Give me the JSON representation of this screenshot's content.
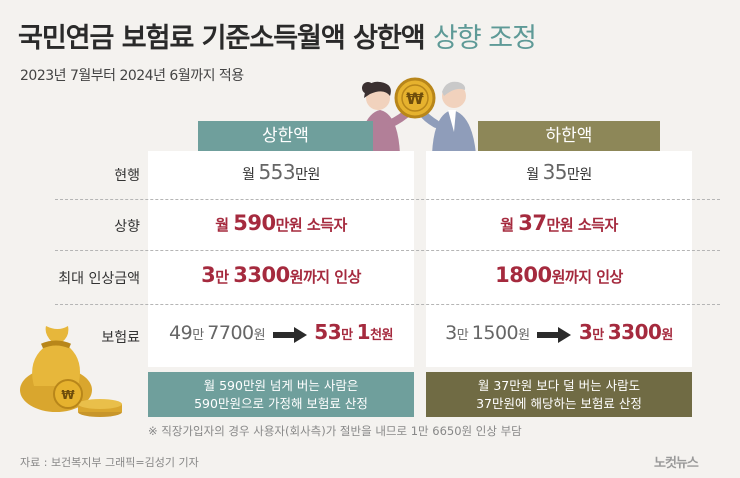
{
  "title": {
    "main": "국민연금 보험료 기준소득월액 상한액",
    "accent": "상향 조정"
  },
  "subtitle": "2023년 7월부터 2024년 6월까지 적용",
  "columns": {
    "upper": "상한액",
    "lower": "하한액"
  },
  "rows": {
    "current": {
      "label": "현행",
      "upper": {
        "pre": "월 ",
        "num": "553",
        "post": "만원"
      },
      "lower": {
        "pre": "월 ",
        "num": "35",
        "post": "만원"
      }
    },
    "raised": {
      "label": "상향",
      "upper": {
        "pre": "월 ",
        "num": "590",
        "post": "만원 소득자"
      },
      "lower": {
        "pre": "월 ",
        "num": "37",
        "post": "만원 소득자"
      }
    },
    "max_increase": {
      "label": "최대 인상금액",
      "upper": {
        "n1": "3",
        "u1": "만 ",
        "n2": "3300",
        "u2": "원까지 인상"
      },
      "lower": {
        "n1": "1800",
        "u1": "원까지 인상"
      }
    },
    "premium": {
      "label": "보험료",
      "upper": {
        "from": {
          "n1": "49",
          "u1": "만 ",
          "n2": "7700",
          "u2": "원"
        },
        "to": {
          "n1": "53",
          "u1": "만 ",
          "n2": "1",
          "u2": "천원"
        }
      },
      "lower": {
        "from": {
          "n1": "3",
          "u1": "만 ",
          "n2": "1500",
          "u2": "원"
        },
        "to": {
          "n1": "3",
          "u1": "만 ",
          "n2": "3300",
          "u2": "원"
        }
      }
    }
  },
  "notes": {
    "upper": [
      "월 590만원 넘게 버는 사람은",
      "590만원으로 가정해 보험료 산정"
    ],
    "lower": [
      "월 37만원 보다 덜 버는 사람도",
      "37만원에 해당하는 보험료 산정"
    ]
  },
  "footnote": "※ 직장가입자의 경우 사용자(회사측)가 절반을 내므로 1만 6650원 인상 부담",
  "source": "자료 : 보건복지부   그래픽=김성기 기자",
  "logo": "노컷뉴스",
  "colors": {
    "teal": "#6f9f9c",
    "olive": "#8d8758",
    "dark_olive": "#706b44",
    "red": "#a52a3e"
  },
  "icons": [
    "coin-won-icon",
    "money-bag-icon",
    "people-illustration"
  ]
}
